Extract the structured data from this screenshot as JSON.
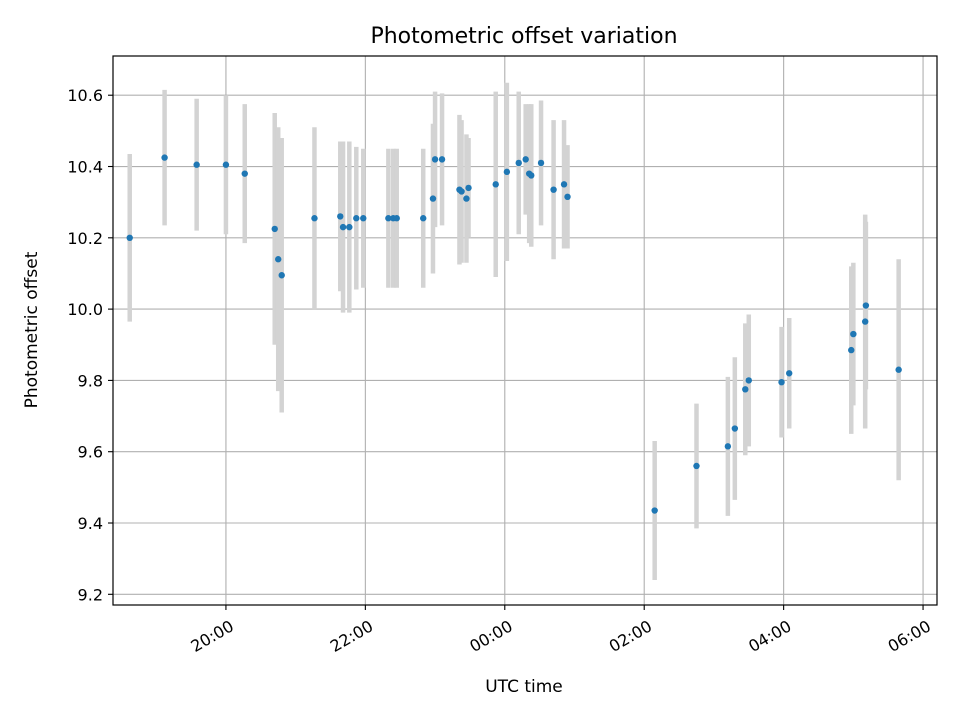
{
  "chart_data": {
    "type": "scatter",
    "title": "Photometric offset variation",
    "xlabel": "UTC time",
    "ylabel": "Photometric offset",
    "x_axis": {
      "tick_labels": [
        "20:00",
        "22:00",
        "00:00",
        "02:00",
        "04:00",
        "06:00"
      ],
      "tick_hours": [
        20,
        22,
        24,
        26,
        28,
        30
      ],
      "xlim_hours": [
        18.38,
        30.2
      ]
    },
    "y_axis": {
      "tick_labels": [
        "9.2",
        "9.4",
        "9.6",
        "9.8",
        "10.0",
        "10.2",
        "10.4",
        "10.6"
      ],
      "ticks": [
        9.2,
        9.4,
        9.6,
        9.8,
        10.0,
        10.2,
        10.4,
        10.6
      ],
      "ylim": [
        9.17,
        10.71
      ]
    },
    "grid": true,
    "marker_color": "#1f77b4",
    "errorbar_color": "#d3d3d3",
    "series": [
      {
        "x_hours": [
          18.62,
          19.12,
          19.58,
          20.0,
          20.27,
          20.7,
          20.75,
          20.8,
          21.27,
          21.64,
          21.68,
          21.77,
          21.87,
          21.97,
          22.33,
          22.4,
          22.45,
          22.83,
          22.97,
          23.0,
          23.1,
          23.35,
          23.38,
          23.45,
          23.48,
          23.87,
          24.03,
          24.2,
          24.3,
          24.35,
          24.38,
          24.52,
          24.7,
          24.85,
          24.9,
          26.15,
          26.75,
          27.2,
          27.3,
          27.45,
          27.5,
          27.97,
          28.08,
          28.97,
          29.0,
          29.17,
          29.18,
          29.65
        ],
        "y": [
          10.2,
          10.425,
          10.405,
          10.405,
          10.38,
          10.225,
          10.14,
          10.095,
          10.255,
          10.26,
          10.23,
          10.23,
          10.255,
          10.255,
          10.255,
          10.255,
          10.255,
          10.255,
          10.31,
          10.42,
          10.42,
          10.335,
          10.33,
          10.31,
          10.34,
          10.35,
          10.385,
          10.41,
          10.42,
          10.38,
          10.375,
          10.41,
          10.335,
          10.35,
          10.315,
          9.435,
          9.56,
          9.615,
          9.665,
          9.775,
          9.8,
          9.795,
          9.82,
          9.885,
          9.93,
          9.965,
          10.01,
          9.83
        ],
        "yerr": [
          0.235,
          0.19,
          0.185,
          0.195,
          0.195,
          0.325,
          0.37,
          0.385,
          0.255,
          0.21,
          0.24,
          0.24,
          0.2,
          0.195,
          0.195,
          0.195,
          0.195,
          0.195,
          0.21,
          0.19,
          0.185,
          0.21,
          0.2,
          0.18,
          0.14,
          0.26,
          0.25,
          0.2,
          0.155,
          0.195,
          0.2,
          0.175,
          0.195,
          0.18,
          0.145,
          0.195,
          0.175,
          0.195,
          0.2,
          0.185,
          0.185,
          0.155,
          0.155,
          0.235,
          0.2,
          0.3,
          0.235,
          0.31
        ]
      }
    ]
  }
}
